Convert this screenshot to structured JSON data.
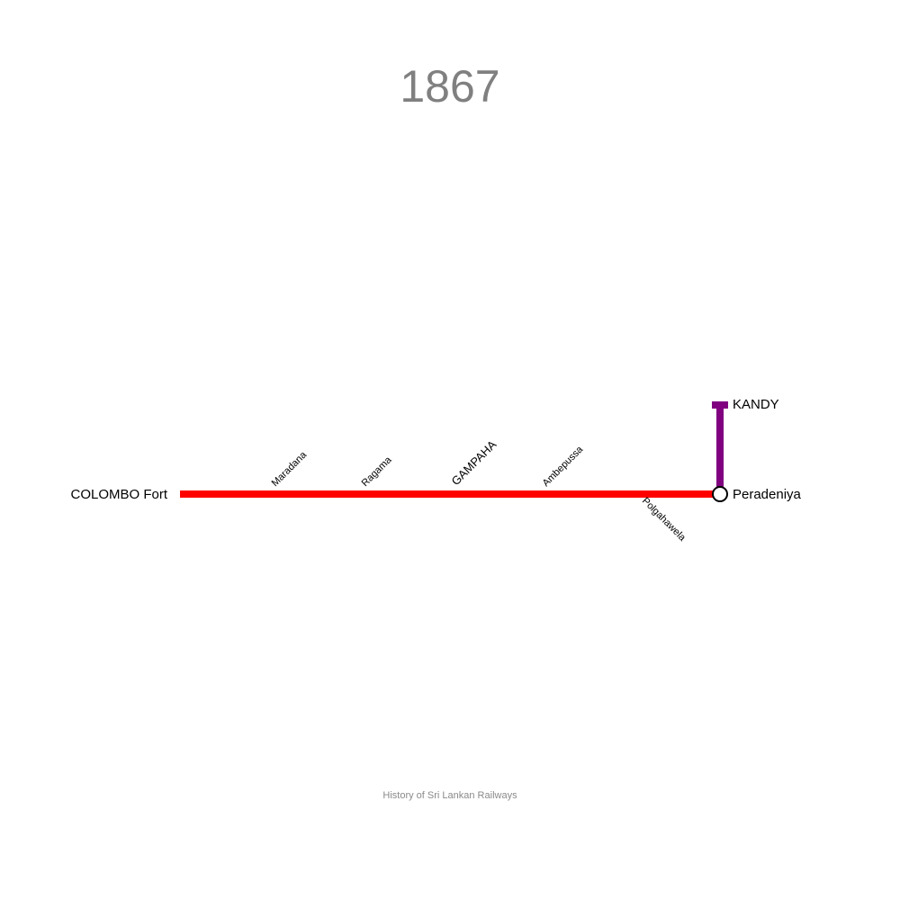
{
  "title": "1867",
  "footer": "History of Sri Lankan Railways",
  "lines": {
    "main_line": {
      "color": "#ff0000"
    },
    "kandy_branch": {
      "color": "#800080"
    }
  },
  "stations": {
    "colombo_fort": "COLOMBO Fort",
    "maradana": "Maradana",
    "ragama": "Ragama",
    "gampaha": "GAMPAHA",
    "ambepussa": "Ambepussa",
    "polgahawela": "Polgahawela",
    "peradeniya": "Peradeniya",
    "kandy": "KANDY"
  }
}
